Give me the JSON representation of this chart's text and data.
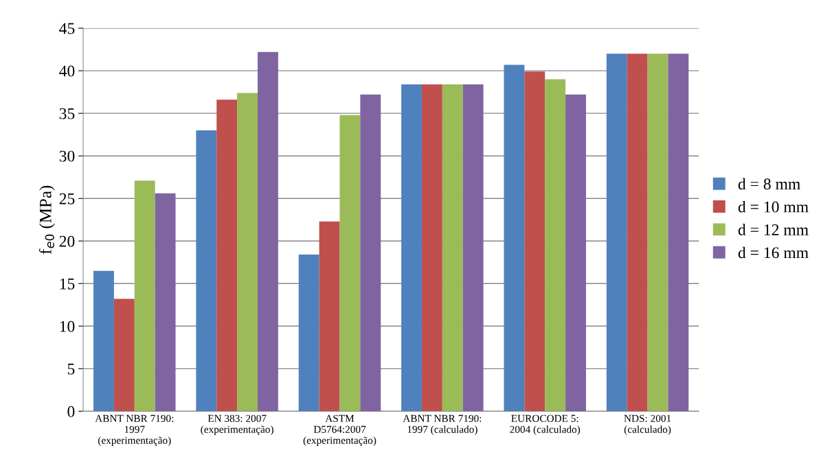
{
  "chart_data": {
    "type": "bar",
    "ylabel": "f$_{e0}$ (MPa)",
    "categories": [
      "ABNT NBR 7190:\n1997\n(experimentação)",
      "EN 383: 2007\n(experimentação)",
      "ASTM\nD5764:2007\n(experimentação)",
      "ABNT NBR 7190:\n1997 (calculado)",
      "EUROCODE 5:\n2004 (calculado)",
      "NDS: 2001\n(calculado)"
    ],
    "series": [
      {
        "name": "d = 8 mm",
        "color": "#4f81bd",
        "values": [
          16.5,
          33.0,
          18.4,
          38.4,
          40.7,
          42.0
        ]
      },
      {
        "name": "d = 10 mm",
        "color": "#c0504d",
        "values": [
          13.2,
          36.6,
          22.3,
          38.4,
          39.9,
          42.0
        ]
      },
      {
        "name": "d = 12 mm",
        "color": "#9bbb59",
        "values": [
          27.1,
          37.4,
          34.8,
          38.4,
          39.0,
          42.0
        ]
      },
      {
        "name": "d = 16 mm",
        "color": "#8064a2",
        "values": [
          25.6,
          42.2,
          37.2,
          38.4,
          37.2,
          42.0
        ]
      }
    ],
    "ylim": [
      0,
      45
    ],
    "yticks": [
      0,
      5,
      10,
      15,
      20,
      25,
      30,
      35,
      40,
      45
    ],
    "grid": "y",
    "legend": "right"
  }
}
